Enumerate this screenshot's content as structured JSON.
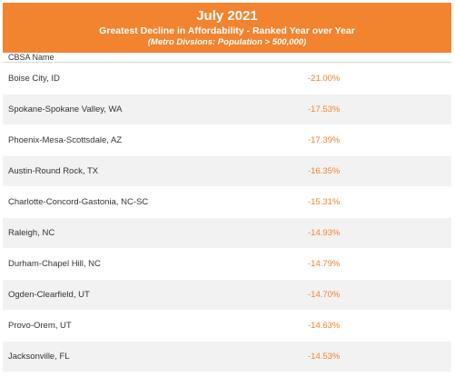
{
  "header": {
    "title": "July 2021",
    "subtitle": "Greatest Decline in Affordability - Ranked Year over Year",
    "note": "(Metro Divsions: Population > 500,000)"
  },
  "table": {
    "column_header": "CBSA Name",
    "rows": [
      {
        "name": "Boise City, ID",
        "value": "-21.00%"
      },
      {
        "name": "Spokane-Spokane Valley, WA",
        "value": "-17.53%"
      },
      {
        "name": "Phoenix-Mesa-Scottsdale, AZ",
        "value": "-17.39%"
      },
      {
        "name": "Austin-Round Rock, TX",
        "value": "-16.35%"
      },
      {
        "name": "Charlotte-Concord-Gastonia, NC-SC",
        "value": "-15.31%"
      },
      {
        "name": "Raleigh, NC",
        "value": "-14.93%"
      },
      {
        "name": "Durham-Chapel Hill, NC",
        "value": "-14.79%"
      },
      {
        "name": "Ogden-Clearfield, UT",
        "value": "-14.70%"
      },
      {
        "name": "Provo-Orem, UT",
        "value": "-14.63%"
      },
      {
        "name": "Jacksonville, FL",
        "value": "-14.53%"
      }
    ]
  },
  "colors": {
    "accent": "#f2832f",
    "stripe": "#f2f2f2"
  }
}
